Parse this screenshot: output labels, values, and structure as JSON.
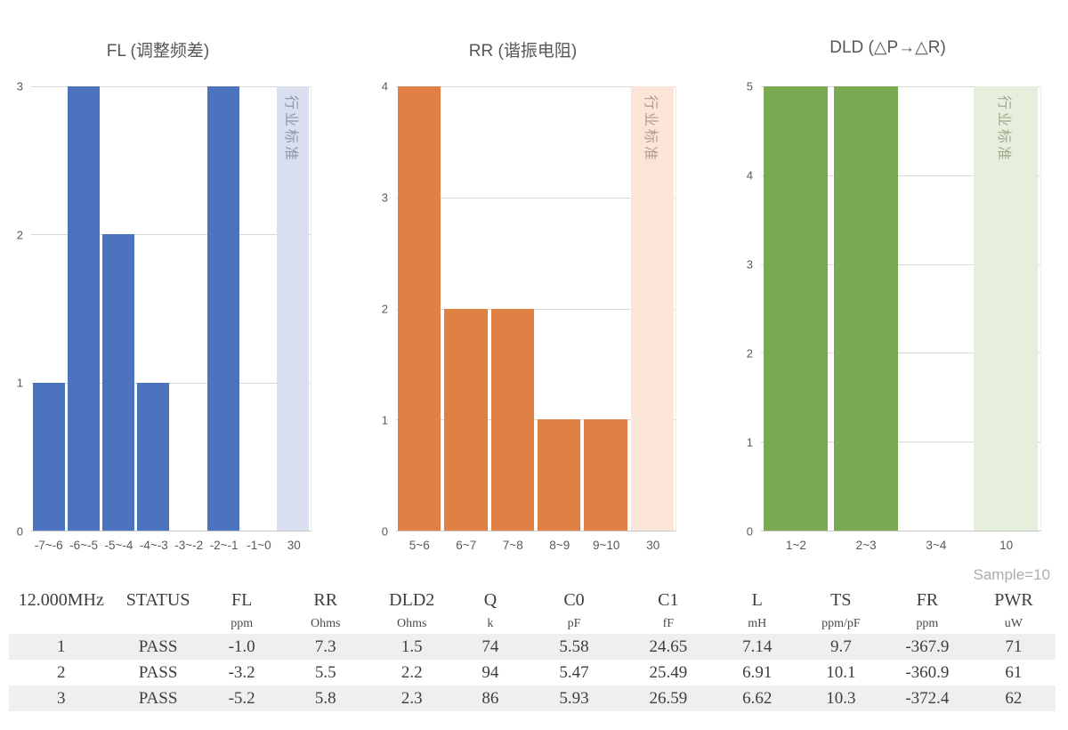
{
  "page": {
    "sample_label": "Sample=10"
  },
  "colors": {
    "gridline": "#d9d9d9",
    "axis_line": "#c9c9c9",
    "axis_text": "#595959",
    "title_text": "#575757",
    "table_stripe": "#efefef",
    "sample_label_text": "#acacac"
  },
  "chart_data": [
    {
      "type": "bar",
      "title": "FL (调整频差)",
      "categories": [
        "-7~-6",
        "-6~-5",
        "-5~-4",
        "-4~-3",
        "-3~-2",
        "-2~-1",
        "-1~0"
      ],
      "values": [
        1,
        3,
        2,
        1,
        0,
        3,
        0
      ],
      "ylim": [
        0,
        3
      ],
      "y_ticks": [
        0,
        1,
        2,
        3
      ],
      "band": {
        "category": "30",
        "label": "行业标准"
      },
      "colors": {
        "bar": "#4c73be",
        "band_bg": "#d9dfee",
        "band_text": "#8c94a8"
      },
      "xlabel": "",
      "ylabel": "",
      "grid": true,
      "legend": false
    },
    {
      "type": "bar",
      "title": "RR (谐振电阻)",
      "categories": [
        "5~6",
        "6~7",
        "7~8",
        "8~9",
        "9~10"
      ],
      "values": [
        4,
        2,
        2,
        1,
        1
      ],
      "ylim": [
        0,
        4
      ],
      "y_ticks": [
        0,
        1,
        2,
        3,
        4
      ],
      "band": {
        "category": "30",
        "label": "行业标准"
      },
      "colors": {
        "bar": "#e08044",
        "band_bg": "#fae5d8",
        "band_text": "#b29a8a"
      },
      "xlabel": "",
      "ylabel": "",
      "grid": true,
      "legend": false
    },
    {
      "type": "bar",
      "title": "DLD (△P→△R)",
      "categories": [
        "1~2",
        "2~3",
        "3~4"
      ],
      "values": [
        5,
        5,
        0
      ],
      "ylim": [
        0,
        5
      ],
      "y_ticks": [
        0,
        1,
        2,
        3,
        4,
        5
      ],
      "band": {
        "category": "10",
        "label": "行业标准"
      },
      "colors": {
        "bar": "#79aa51",
        "band_bg": "#e5efdc",
        "band_text": "#9ca98f"
      },
      "xlabel": "",
      "ylabel": "",
      "grid": true,
      "legend": false
    }
  ],
  "table": {
    "columns": [
      {
        "label": "12.000MHz",
        "unit": ""
      },
      {
        "label": "STATUS",
        "unit": ""
      },
      {
        "label": "FL",
        "unit": "ppm"
      },
      {
        "label": "RR",
        "unit": "Ohms"
      },
      {
        "label": "DLD2",
        "unit": "Ohms"
      },
      {
        "label": "Q",
        "unit": "k"
      },
      {
        "label": "C0",
        "unit": "pF"
      },
      {
        "label": "C1",
        "unit": "fF"
      },
      {
        "label": "L",
        "unit": "mH"
      },
      {
        "label": "TS",
        "unit": "ppm/pF"
      },
      {
        "label": "FR",
        "unit": "ppm"
      },
      {
        "label": "PWR",
        "unit": "uW"
      }
    ],
    "rows": [
      [
        "1",
        "PASS",
        "-1.0",
        "7.3",
        "1.5",
        "74",
        "5.58",
        "24.65",
        "7.14",
        "9.7",
        "-367.9",
        "71"
      ],
      [
        "2",
        "PASS",
        "-3.2",
        "5.5",
        "2.2",
        "94",
        "5.47",
        "25.49",
        "6.91",
        "10.1",
        "-360.9",
        "61"
      ],
      [
        "3",
        "PASS",
        "-5.2",
        "5.8",
        "2.3",
        "86",
        "5.93",
        "26.59",
        "6.62",
        "10.3",
        "-372.4",
        "62"
      ]
    ]
  }
}
